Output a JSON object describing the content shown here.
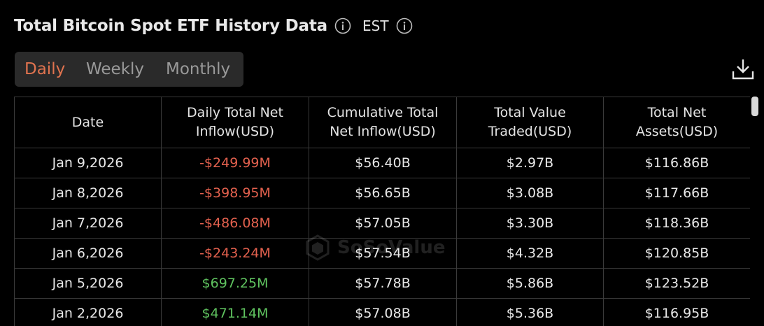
{
  "header": {
    "title": "Total Bitcoin Spot ETF History Data",
    "timezone": "EST",
    "info_icon": "info-circle-icon"
  },
  "tabs": [
    {
      "label": "Daily",
      "active": true
    },
    {
      "label": "Weekly",
      "active": false
    },
    {
      "label": "Monthly",
      "active": false
    }
  ],
  "toolbar": {
    "download_icon": "download-icon"
  },
  "table": {
    "columns": [
      [
        "Date"
      ],
      [
        "Daily Total Net",
        "Inflow(USD)"
      ],
      [
        "Cumulative Total",
        "Net Inflow(USD)"
      ],
      [
        "Total Value",
        "Traded(USD)"
      ],
      [
        "Total Net",
        "Assets(USD)"
      ]
    ],
    "rows": [
      {
        "date": "Jan 9,2026",
        "daily": "-$249.99M",
        "cumulative": "$56.40B",
        "traded": "$2.97B",
        "assets": "$116.86B"
      },
      {
        "date": "Jan 8,2026",
        "daily": "-$398.95M",
        "cumulative": "$56.65B",
        "traded": "$3.08B",
        "assets": "$117.66B"
      },
      {
        "date": "Jan 7,2026",
        "daily": "-$486.08M",
        "cumulative": "$57.05B",
        "traded": "$3.30B",
        "assets": "$118.36B"
      },
      {
        "date": "Jan 6,2026",
        "daily": "-$243.24M",
        "cumulative": "$57.54B",
        "traded": "$4.32B",
        "assets": "$120.85B"
      },
      {
        "date": "Jan 5,2026",
        "daily": "$697.25M",
        "cumulative": "$57.78B",
        "traded": "$5.86B",
        "assets": "$123.52B"
      },
      {
        "date": "Jan 2,2026",
        "daily": "$471.14M",
        "cumulative": "$57.08B",
        "traded": "$5.36B",
        "assets": "$116.95B"
      }
    ]
  },
  "watermark": {
    "text": "SoSoValue"
  },
  "colors": {
    "background": "#000000",
    "active_tab": "#e0734f",
    "negative": "#e3614e",
    "positive": "#5fc25f",
    "grid": "#3a3a3a"
  }
}
